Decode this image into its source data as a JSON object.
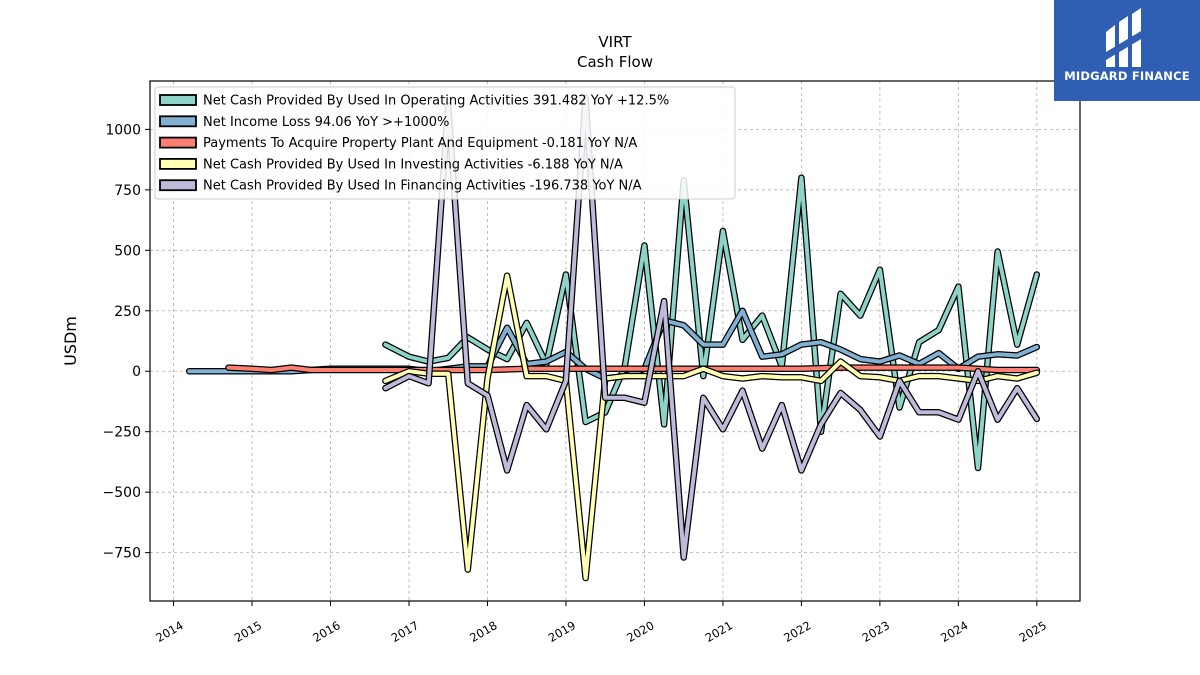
{
  "brand": {
    "name": "MIDGARD FINANCE",
    "logo_icon": "midgard-logo-icon",
    "bg_color": "#2f5fb3"
  },
  "chart_data": {
    "type": "line",
    "title": "VIRT",
    "subtitle": "Cash Flow",
    "xlabel": "",
    "ylabel": "USDm",
    "xlim": [
      2013.7,
      2025.55
    ],
    "ylim": [
      -950,
      1200
    ],
    "x_ticks": [
      "2014",
      "2015",
      "2016",
      "2017",
      "2018",
      "2019",
      "2020",
      "2021",
      "2022",
      "2023",
      "2024",
      "2025"
    ],
    "y_ticks": [
      -750,
      -500,
      -250,
      0,
      250,
      500,
      750,
      1000
    ],
    "y_tick_labels": [
      "−750",
      "−500",
      "−250",
      "0",
      "250",
      "500",
      "750",
      "1000"
    ],
    "grid": true,
    "legend_position": "top-left",
    "series": [
      {
        "name": "Net Cash Provided By Used In Operating Activities",
        "legend_label": "Net Cash Provided By Used In Operating Activities  391.482 YoY +12.5%",
        "color": "#8dd3c7",
        "points": [
          [
            2016.7,
            110
          ],
          [
            2017.0,
            60
          ],
          [
            2017.25,
            40
          ],
          [
            2017.5,
            55
          ],
          [
            2017.75,
            140
          ],
          [
            2018.0,
            90
          ],
          [
            2018.25,
            50
          ],
          [
            2018.5,
            200
          ],
          [
            2018.75,
            30
          ],
          [
            2019.0,
            400
          ],
          [
            2019.25,
            -210
          ],
          [
            2019.5,
            -170
          ],
          [
            2019.75,
            20
          ],
          [
            2020.0,
            520
          ],
          [
            2020.25,
            -220
          ],
          [
            2020.5,
            790
          ],
          [
            2020.75,
            -20
          ],
          [
            2021.0,
            580
          ],
          [
            2021.25,
            130
          ],
          [
            2021.5,
            230
          ],
          [
            2021.75,
            20
          ],
          [
            2022.0,
            800
          ],
          [
            2022.25,
            -250
          ],
          [
            2022.5,
            320
          ],
          [
            2022.75,
            230
          ],
          [
            2023.0,
            420
          ],
          [
            2023.25,
            -150
          ],
          [
            2023.5,
            120
          ],
          [
            2023.75,
            170
          ],
          [
            2024.0,
            350
          ],
          [
            2024.25,
            -400
          ],
          [
            2024.5,
            495
          ],
          [
            2024.75,
            110
          ],
          [
            2025.0,
            400
          ]
        ]
      },
      {
        "name": "Net Income Loss",
        "legend_label": "Net Income Loss  94.06 YoY >+1000%",
        "color": "#80b1d3",
        "points": [
          [
            2014.2,
            0
          ],
          [
            2014.5,
            0
          ],
          [
            2014.75,
            0
          ],
          [
            2015.0,
            0
          ],
          [
            2015.5,
            0
          ],
          [
            2016.0,
            10
          ],
          [
            2016.5,
            10
          ],
          [
            2017.0,
            10
          ],
          [
            2017.25,
            0
          ],
          [
            2017.5,
            10
          ],
          [
            2017.75,
            20
          ],
          [
            2018.0,
            20
          ],
          [
            2018.25,
            180
          ],
          [
            2018.5,
            30
          ],
          [
            2018.75,
            40
          ],
          [
            2019.0,
            80
          ],
          [
            2019.25,
            10
          ],
          [
            2019.5,
            -30
          ],
          [
            2019.75,
            -20
          ],
          [
            2020.0,
            10
          ],
          [
            2020.25,
            210
          ],
          [
            2020.5,
            190
          ],
          [
            2020.75,
            110
          ],
          [
            2021.0,
            110
          ],
          [
            2021.25,
            250
          ],
          [
            2021.5,
            60
          ],
          [
            2021.75,
            70
          ],
          [
            2022.0,
            110
          ],
          [
            2022.25,
            120
          ],
          [
            2022.5,
            90
          ],
          [
            2022.75,
            50
          ],
          [
            2023.0,
            40
          ],
          [
            2023.25,
            65
          ],
          [
            2023.5,
            30
          ],
          [
            2023.75,
            75
          ],
          [
            2024.0,
            10
          ],
          [
            2024.25,
            60
          ],
          [
            2024.5,
            70
          ],
          [
            2024.75,
            65
          ],
          [
            2025.0,
            100
          ]
        ]
      },
      {
        "name": "Payments To Acquire Property Plant And Equipment",
        "legend_label": "Payments To Acquire Property Plant And Equipment  -0.181 YoY N/A",
        "color": "#fb8072",
        "points": [
          [
            2014.7,
            15
          ],
          [
            2015.0,
            10
          ],
          [
            2015.25,
            5
          ],
          [
            2015.5,
            15
          ],
          [
            2015.75,
            5
          ],
          [
            2016.0,
            5
          ],
          [
            2016.5,
            5
          ],
          [
            2017.0,
            5
          ],
          [
            2017.5,
            5
          ],
          [
            2018.0,
            5
          ],
          [
            2018.5,
            10
          ],
          [
            2019.0,
            10
          ],
          [
            2019.5,
            10
          ],
          [
            2020.0,
            10
          ],
          [
            2020.5,
            10
          ],
          [
            2021.0,
            10
          ],
          [
            2021.5,
            10
          ],
          [
            2022.0,
            10
          ],
          [
            2022.5,
            15
          ],
          [
            2023.0,
            15
          ],
          [
            2023.5,
            15
          ],
          [
            2024.0,
            15
          ],
          [
            2024.5,
            5
          ],
          [
            2025.0,
            5
          ]
        ]
      },
      {
        "name": "Net Cash Provided By Used In Investing Activities",
        "legend_label": "Net Cash Provided By Used In Investing Activities  -6.188 YoY N/A",
        "color": "#ffffb3",
        "points": [
          [
            2016.7,
            -40
          ],
          [
            2017.0,
            0
          ],
          [
            2017.25,
            -10
          ],
          [
            2017.5,
            -10
          ],
          [
            2017.75,
            -820
          ],
          [
            2018.0,
            -30
          ],
          [
            2018.25,
            395
          ],
          [
            2018.5,
            -20
          ],
          [
            2018.75,
            -20
          ],
          [
            2019.0,
            -40
          ],
          [
            2019.25,
            -855
          ],
          [
            2019.5,
            -30
          ],
          [
            2019.75,
            -20
          ],
          [
            2020.0,
            -20
          ],
          [
            2020.25,
            -20
          ],
          [
            2020.5,
            -20
          ],
          [
            2020.75,
            10
          ],
          [
            2021.0,
            -20
          ],
          [
            2021.25,
            -30
          ],
          [
            2021.5,
            -20
          ],
          [
            2021.75,
            -25
          ],
          [
            2022.0,
            -25
          ],
          [
            2022.25,
            -40
          ],
          [
            2022.5,
            40
          ],
          [
            2022.75,
            -20
          ],
          [
            2023.0,
            -25
          ],
          [
            2023.25,
            -40
          ],
          [
            2023.5,
            -20
          ],
          [
            2023.75,
            -20
          ],
          [
            2024.0,
            -30
          ],
          [
            2024.25,
            -40
          ],
          [
            2024.5,
            -20
          ],
          [
            2024.75,
            -30
          ],
          [
            2025.0,
            -6
          ]
        ]
      },
      {
        "name": "Net Cash Provided By Used In Financing Activities",
        "legend_label": "Net Cash Provided By Used In Financing Activities  -196.738 YoY N/A",
        "color": "#bebada",
        "points": [
          [
            2016.7,
            -70
          ],
          [
            2017.0,
            -20
          ],
          [
            2017.25,
            -50
          ],
          [
            2017.5,
            1100
          ],
          [
            2017.75,
            -50
          ],
          [
            2018.0,
            -100
          ],
          [
            2018.25,
            -410
          ],
          [
            2018.5,
            -140
          ],
          [
            2018.75,
            -240
          ],
          [
            2019.0,
            -40
          ],
          [
            2019.25,
            1130
          ],
          [
            2019.5,
            -110
          ],
          [
            2019.75,
            -110
          ],
          [
            2020.0,
            -130
          ],
          [
            2020.25,
            290
          ],
          [
            2020.5,
            -770
          ],
          [
            2020.75,
            -110
          ],
          [
            2021.0,
            -240
          ],
          [
            2021.25,
            -80
          ],
          [
            2021.5,
            -320
          ],
          [
            2021.75,
            -140
          ],
          [
            2022.0,
            -410
          ],
          [
            2022.25,
            -220
          ],
          [
            2022.5,
            -90
          ],
          [
            2022.75,
            -160
          ],
          [
            2023.0,
            -270
          ],
          [
            2023.25,
            -40
          ],
          [
            2023.5,
            -170
          ],
          [
            2023.75,
            -170
          ],
          [
            2024.0,
            -200
          ],
          [
            2024.25,
            0
          ],
          [
            2024.5,
            -200
          ],
          [
            2024.75,
            -70
          ],
          [
            2025.0,
            -197
          ]
        ]
      }
    ]
  }
}
